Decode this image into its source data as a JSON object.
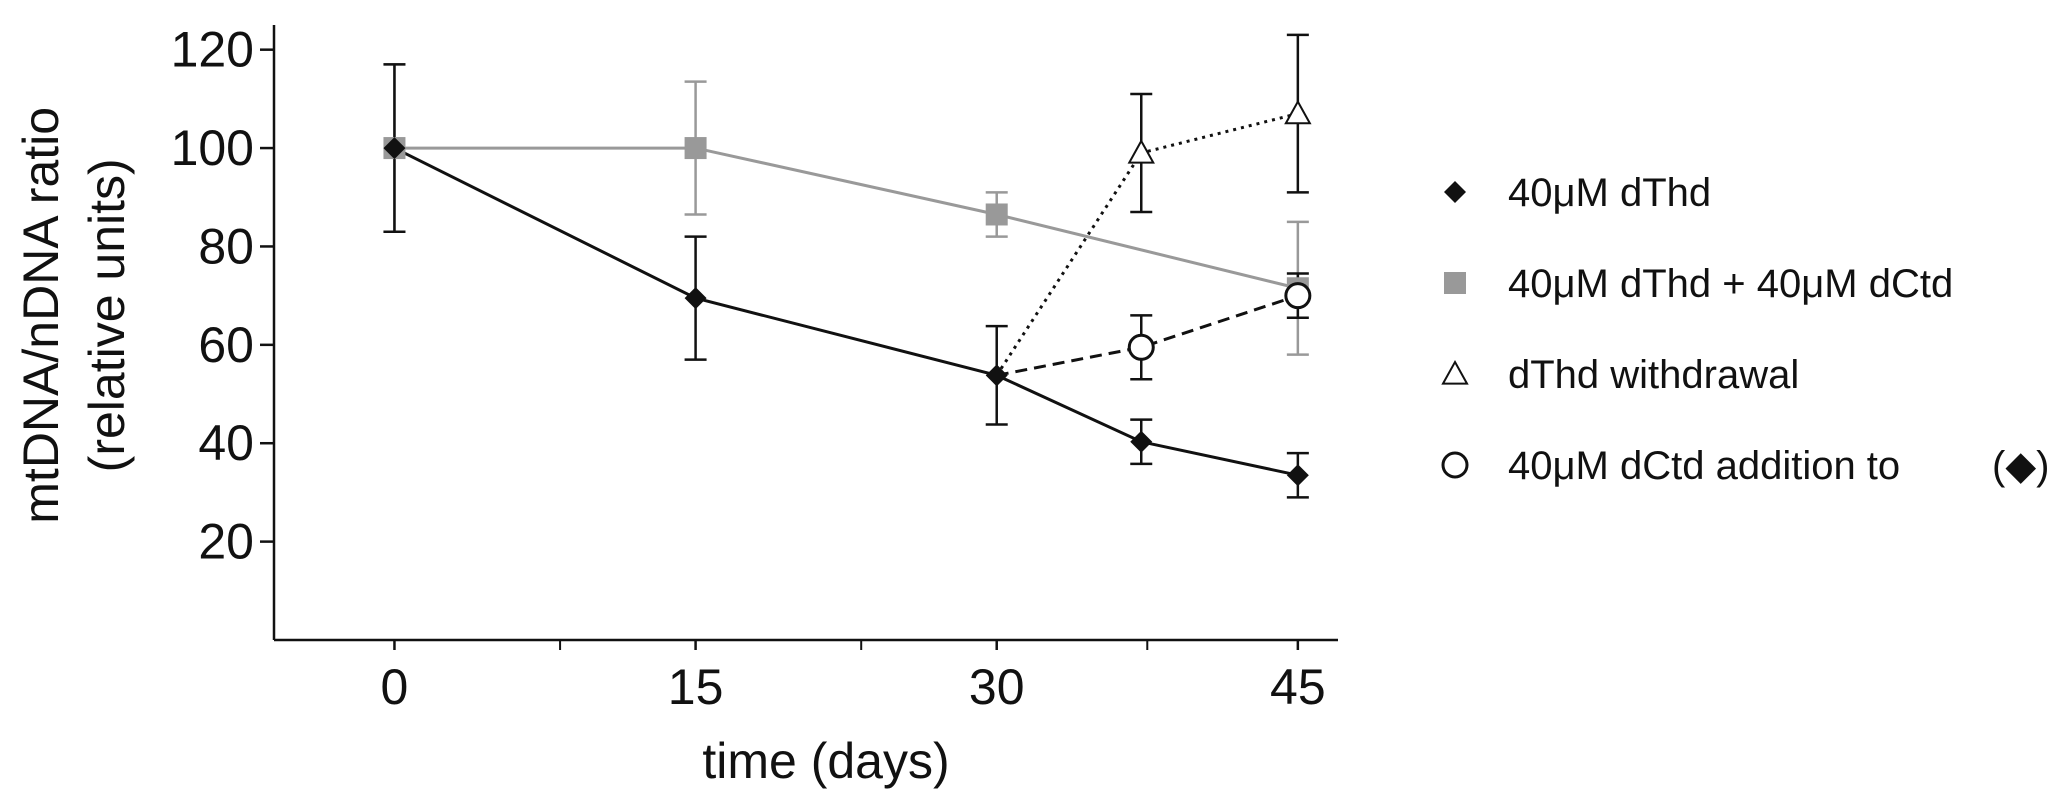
{
  "chart_data": {
    "type": "line",
    "xlabel": "time (days)",
    "ylabel_line1": "mtDNA/nDNA ratio",
    "ylabel_line2": "(relative units)",
    "xlim": [
      -6,
      47
    ],
    "ylim": [
      0,
      124
    ],
    "x_ticks": [
      0,
      15,
      30,
      45
    ],
    "x_tick_labels": [
      "0",
      "15",
      "30",
      "45"
    ],
    "x_minor_ticks": [
      8.25,
      23.25,
      37.5
    ],
    "y_ticks": [
      20,
      40,
      60,
      80,
      100,
      120
    ],
    "y_tick_labels": [
      "20",
      "40",
      "60",
      "80",
      "100",
      "120"
    ],
    "grid": false,
    "legend_position": "right",
    "series": [
      {
        "name": "40μM dThd + 40μM dCtd",
        "marker": "square-filled",
        "line_style": "solid",
        "color": "#999999",
        "x": [
          0,
          15,
          30,
          45
        ],
        "y": [
          100,
          100,
          86.5,
          71.5
        ],
        "err": [
          17,
          13.5,
          4.5,
          13.5
        ]
      },
      {
        "name": "40μM dThd",
        "marker": "diamond-filled",
        "line_style": "solid",
        "color": "#111111",
        "x": [
          0,
          15,
          30,
          37.2,
          45
        ],
        "y": [
          100,
          69.5,
          53.8,
          40.3,
          33.5
        ],
        "err": [
          17,
          12.5,
          10,
          4.5,
          4.5
        ]
      },
      {
        "name": "dThd withdrawal",
        "marker": "triangle-open",
        "line_style": "dotted",
        "color": "#111111",
        "x": [
          30,
          37.2,
          45
        ],
        "y": [
          53.8,
          99,
          107
        ],
        "err": [
          0,
          12,
          16
        ]
      },
      {
        "name": "40μM dCtd addition to",
        "legend_suffix": "(◆)",
        "marker": "circle-open",
        "line_style": "dashed",
        "color": "#111111",
        "x": [
          30,
          37.2,
          45
        ],
        "y": [
          53.8,
          59.5,
          70
        ],
        "err": [
          0,
          6.5,
          4.5
        ]
      }
    ],
    "legend_order": [
      1,
      0,
      2,
      3
    ]
  }
}
